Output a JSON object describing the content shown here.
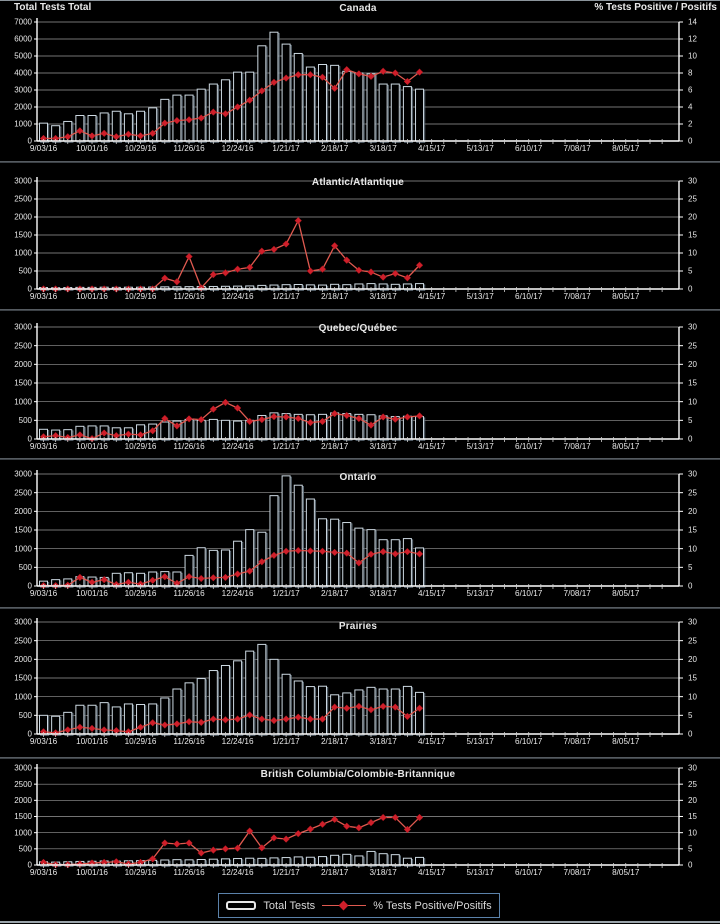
{
  "header": {
    "left_axis_title": "Total Tests Total",
    "right_axis_title": "% Tests Positive / Positifs"
  },
  "legend": {
    "bar_label": "Total Tests",
    "line_label": "% Tests Positive/Positifs"
  },
  "colors": {
    "background": "#000000",
    "text": "#e8e8e8",
    "grid": "#9a9a9a",
    "axis": "#ffffff",
    "bar_fill": "#000000",
    "bar_outline": "#cdd9e2",
    "bar_shadow": "#5f6d78",
    "line": "#e05a50",
    "marker": "#cf1f2a",
    "legend_border": "#5b82aa"
  },
  "x_axis": {
    "tick_labels": [
      "9/03/16",
      "10/01/16",
      "10/29/16",
      "11/26/16",
      "12/24/16",
      "1/21/17",
      "2/18/17",
      "3/18/17",
      "4/15/17",
      "5/13/17",
      "6/10/17",
      "7/08/17",
      "8/05/17"
    ],
    "label_interval_weeks": 4,
    "total_slots": 52,
    "data_weeks": 32
  },
  "chart_data": [
    {
      "type": "bar",
      "title": "Canada",
      "left_axis": {
        "min": 0,
        "max": 7000,
        "step": 1000
      },
      "right_axis": {
        "min": 0,
        "max": 14,
        "step": 2
      },
      "series": [
        {
          "name": "Total Tests",
          "kind": "bar",
          "axis": "left",
          "values": [
            1050,
            900,
            1150,
            1500,
            1500,
            1650,
            1750,
            1600,
            1750,
            1950,
            2450,
            2700,
            2700,
            3050,
            3350,
            3600,
            4050,
            4050,
            5600,
            6400,
            5700,
            5150,
            4350,
            4500,
            4450,
            4100,
            4000,
            3950,
            3350,
            3350,
            3200,
            3050
          ]
        },
        {
          "name": "% Tests Positive/Positifs",
          "kind": "line",
          "axis": "right",
          "values": [
            0.3,
            0.3,
            0.5,
            1.2,
            0.6,
            0.9,
            0.5,
            0.8,
            0.6,
            0.9,
            2.1,
            2.4,
            2.5,
            2.7,
            3.4,
            3.2,
            4.0,
            4.8,
            5.9,
            6.9,
            7.4,
            7.8,
            7.8,
            7.5,
            6.2,
            8.4,
            7.9,
            7.6,
            8.2,
            8.0,
            7.0,
            8.1
          ]
        }
      ]
    },
    {
      "type": "bar",
      "title": "Atlantic/Atlantique",
      "left_axis": {
        "min": 0,
        "max": 3000,
        "step": 500
      },
      "right_axis": {
        "min": 0,
        "max": 30,
        "step": 5
      },
      "series": [
        {
          "name": "Total Tests",
          "kind": "bar",
          "axis": "left",
          "values": [
            40,
            35,
            40,
            45,
            45,
            50,
            45,
            50,
            50,
            55,
            60,
            60,
            65,
            70,
            70,
            75,
            80,
            85,
            100,
            110,
            120,
            125,
            115,
            110,
            130,
            120,
            140,
            150,
            140,
            130,
            140,
            150
          ]
        },
        {
          "name": "% Tests Positive/Positifs",
          "kind": "line",
          "axis": "right",
          "values": [
            0,
            0,
            0,
            0,
            0,
            0,
            0,
            0,
            0,
            0,
            3,
            2,
            9,
            0.3,
            4,
            4.5,
            5.5,
            6,
            10.5,
            11,
            12.5,
            19,
            5,
            5.5,
            12,
            8,
            5.2,
            4.7,
            3.3,
            4.3,
            3.1,
            6.6
          ]
        }
      ]
    },
    {
      "type": "bar",
      "title": "Quebec/Québec",
      "left_axis": {
        "min": 0,
        "max": 3000,
        "step": 500
      },
      "right_axis": {
        "min": 0,
        "max": 30,
        "step": 5
      },
      "series": [
        {
          "name": "Total Tests",
          "kind": "bar",
          "axis": "left",
          "values": [
            260,
            240,
            250,
            340,
            350,
            350,
            300,
            300,
            380,
            400,
            455,
            480,
            525,
            500,
            525,
            500,
            480,
            500,
            630,
            700,
            680,
            660,
            650,
            660,
            700,
            680,
            660,
            650,
            620,
            600,
            610,
            600
          ]
        },
        {
          "name": "% Tests Positive/Positifs",
          "kind": "line",
          "axis": "right",
          "values": [
            0.6,
            0.9,
            0.4,
            1.1,
            0.1,
            1.6,
            0.9,
            1.3,
            1.1,
            2.2,
            5.5,
            3.5,
            5.4,
            5.2,
            8.0,
            9.8,
            8.3,
            4.7,
            5.2,
            6.0,
            5.9,
            5.5,
            4.4,
            4.7,
            6.8,
            6.3,
            5.5,
            3.7,
            5.9,
            5.3,
            5.9,
            6.2
          ]
        }
      ]
    },
    {
      "type": "bar",
      "title": "Ontario",
      "left_axis": {
        "min": 0,
        "max": 3000,
        "step": 500
      },
      "right_axis": {
        "min": 0,
        "max": 30,
        "step": 5
      },
      "series": [
        {
          "name": "Total Tests",
          "kind": "bar",
          "axis": "left",
          "values": [
            130,
            170,
            190,
            250,
            240,
            230,
            340,
            355,
            340,
            375,
            385,
            375,
            820,
            1025,
            955,
            965,
            1200,
            1510,
            1440,
            2420,
            2950,
            2700,
            2330,
            1800,
            1790,
            1700,
            1550,
            1510,
            1240,
            1240,
            1270,
            1020
          ]
        },
        {
          "name": "% Tests Positive/Positifs",
          "kind": "line",
          "axis": "right",
          "values": [
            0.1,
            0.1,
            0.2,
            2.3,
            1.0,
            1.7,
            0.4,
            1.0,
            0.5,
            1.5,
            2.5,
            0.7,
            2.5,
            2.0,
            2.2,
            2.3,
            3.2,
            4.0,
            6.5,
            8.2,
            9.3,
            9.5,
            9.4,
            9.3,
            9.0,
            8.8,
            6.2,
            8.5,
            9.2,
            8.6,
            9.2,
            8.6
          ]
        }
      ]
    },
    {
      "type": "bar",
      "title": "Prairies",
      "left_axis": {
        "min": 0,
        "max": 3000,
        "step": 500
      },
      "right_axis": {
        "min": 0,
        "max": 30,
        "step": 5
      },
      "series": [
        {
          "name": "Total Tests",
          "kind": "bar",
          "axis": "left",
          "values": [
            500,
            475,
            580,
            770,
            770,
            840,
            725,
            805,
            790,
            805,
            965,
            1205,
            1370,
            1485,
            1700,
            1835,
            1960,
            2220,
            2400,
            2000,
            1600,
            1420,
            1270,
            1280,
            1050,
            1100,
            1180,
            1250,
            1205,
            1205,
            1275,
            1115
          ]
        },
        {
          "name": "% Tests Positive/Positifs",
          "kind": "line",
          "axis": "right",
          "values": [
            0.6,
            0.3,
            1.1,
            1.8,
            1.5,
            1.1,
            0.9,
            0.6,
            1.8,
            3.0,
            2.4,
            2.7,
            3.3,
            3.1,
            4.0,
            3.8,
            4.0,
            5.1,
            4.0,
            3.6,
            4.0,
            4.5,
            4.0,
            4.0,
            7.2,
            6.9,
            7.4,
            6.5,
            7.4,
            7.2,
            4.7,
            6.9
          ]
        }
      ]
    },
    {
      "type": "bar",
      "title": "British Columbia/Colombie-Britannique",
      "left_axis": {
        "min": 0,
        "max": 3000,
        "step": 500
      },
      "right_axis": {
        "min": 0,
        "max": 30,
        "step": 5
      },
      "series": [
        {
          "name": "Total Tests",
          "kind": "bar",
          "axis": "left",
          "values": [
            100,
            90,
            100,
            110,
            115,
            125,
            120,
            130,
            135,
            145,
            155,
            165,
            160,
            170,
            180,
            190,
            200,
            210,
            205,
            220,
            230,
            250,
            240,
            260,
            300,
            330,
            280,
            420,
            350,
            320,
            210,
            235
          ]
        },
        {
          "name": "% Tests Positive/Positifs",
          "kind": "line",
          "axis": "right",
          "values": [
            0.8,
            0.1,
            0.1,
            0.3,
            0.6,
            0.8,
            1.0,
            0.3,
            0.8,
            1.9,
            6.8,
            6.5,
            6.8,
            3.7,
            4.6,
            5.0,
            5.2,
            10.5,
            5.3,
            8.4,
            8.0,
            9.7,
            11.1,
            12.6,
            14.1,
            12.0,
            11.5,
            13.1,
            14.7,
            14.7,
            11.0,
            14.7
          ]
        }
      ]
    }
  ]
}
